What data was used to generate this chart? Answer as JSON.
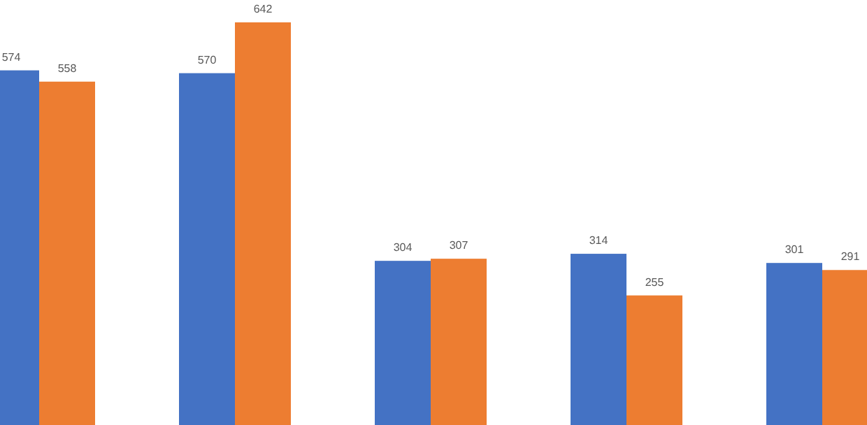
{
  "chart_data": {
    "type": "bar",
    "categories": [
      null,
      null,
      null,
      null,
      null
    ],
    "data_labels": true,
    "series": [
      {
        "color": "#4472c4",
        "values": [
          574,
          570,
          304,
          314,
          301
        ]
      },
      {
        "color": "#ed7d31",
        "values": [
          558,
          642,
          307,
          255,
          291
        ]
      }
    ]
  }
}
